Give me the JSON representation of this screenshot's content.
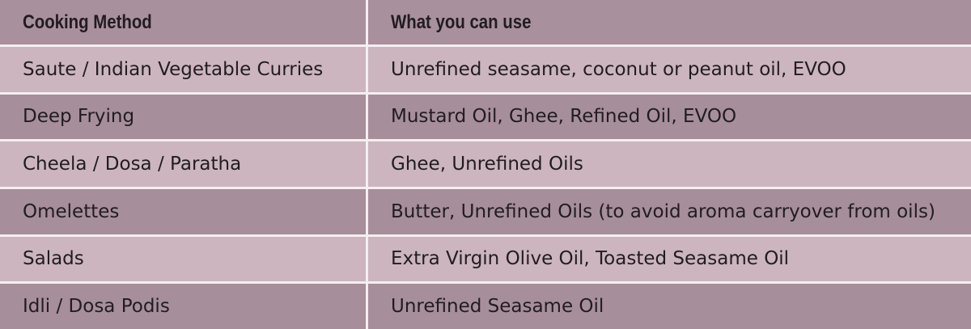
{
  "headers": {
    "method": "Cooking Method",
    "use": "What you can use"
  },
  "rows": [
    {
      "method": "Saute / Indian Vegetable Curries",
      "use": "Unrefined seasame, coconut or peanut oil, EVOO"
    },
    {
      "method": "Deep Frying",
      "use": "Mustard Oil, Ghee, Refined Oil, EVOO"
    },
    {
      "method": "Cheela / Dosa / Paratha",
      "use": "Ghee, Unrefined Oils"
    },
    {
      "method": "Omelettes",
      "use": "Butter, Unrefined Oils (to avoid aroma carryover from oils)"
    },
    {
      "method": "Salads",
      "use": "Extra Virgin Olive Oil, Toasted Seasame Oil"
    },
    {
      "method": "Idli / Dosa Podis",
      "use": "Unrefined Seasame Oil"
    }
  ],
  "colors": {
    "header": "#a8909c",
    "row_light": "#ccb5bf",
    "row_dark": "#a68e9a",
    "text": "#221c22",
    "divider": "#f4eef1"
  }
}
